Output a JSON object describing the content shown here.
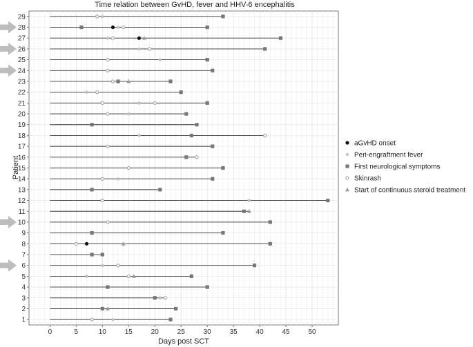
{
  "chart_data": {
    "type": "scatter",
    "title": "Time relation between GvHD, fever and HHV-6 encephalitis",
    "xlabel": "Days post SCT",
    "ylabel": "Patient",
    "xlim": [
      -4,
      55
    ],
    "xticks": [
      0,
      5,
      10,
      15,
      20,
      25,
      30,
      35,
      40,
      45,
      50
    ],
    "ylim": [
      0.5,
      29.5
    ],
    "grid": true,
    "legend_position": "right",
    "legend": [
      {
        "key": "aGvHD",
        "label": "aGvHD onset",
        "marker": "circle",
        "color": "#111111"
      },
      {
        "key": "fever",
        "label": "Peri-engraftment fever",
        "marker": "star",
        "color": "#bdbdbd"
      },
      {
        "key": "neuro",
        "label": "First neurological symptoms",
        "marker": "square",
        "color": "#777777"
      },
      {
        "key": "rash",
        "label": "Skinrash",
        "marker": "small-circle",
        "color": "#aaaaaa"
      },
      {
        "key": "steroid",
        "label": "Start of continuous steroid treatment",
        "marker": "triangle",
        "color": "#999999"
      }
    ],
    "highlighted_patients": [
      28,
      26,
      24,
      10,
      6
    ],
    "patients": [
      {
        "id": 1,
        "end": 23,
        "events": [
          {
            "t": 8,
            "type": "rash"
          },
          {
            "t": 12,
            "type": "fever"
          },
          {
            "t": 23,
            "type": "neuro"
          }
        ]
      },
      {
        "id": 2,
        "end": 24,
        "events": [
          {
            "t": 10,
            "type": "neuro"
          },
          {
            "t": 11,
            "type": "steroid"
          },
          {
            "t": 24,
            "type": "neuro"
          }
        ]
      },
      {
        "id": 3,
        "end": 22,
        "events": [
          {
            "t": 20,
            "type": "neuro"
          },
          {
            "t": 21,
            "type": "fever"
          },
          {
            "t": 22,
            "type": "rash"
          }
        ]
      },
      {
        "id": 4,
        "end": 30,
        "events": [
          {
            "t": 11,
            "type": "neuro"
          },
          {
            "t": 30,
            "type": "neuro"
          }
        ]
      },
      {
        "id": 5,
        "end": 27,
        "events": [
          {
            "t": 7,
            "type": "fever"
          },
          {
            "t": 15,
            "type": "rash"
          },
          {
            "t": 16,
            "type": "steroid"
          },
          {
            "t": 27,
            "type": "neuro"
          }
        ]
      },
      {
        "id": 6,
        "end": 39,
        "events": [
          {
            "t": 10,
            "type": "fever"
          },
          {
            "t": 13,
            "type": "rash"
          },
          {
            "t": 39,
            "type": "neuro"
          }
        ]
      },
      {
        "id": 7,
        "end": 10,
        "events": [
          {
            "t": 8,
            "type": "neuro"
          },
          {
            "t": 10,
            "type": "neuro"
          }
        ]
      },
      {
        "id": 8,
        "end": 42,
        "events": [
          {
            "t": 5,
            "type": "rash"
          },
          {
            "t": 7,
            "type": "aGvHD"
          },
          {
            "t": 14,
            "type": "steroid"
          },
          {
            "t": 42,
            "type": "neuro"
          }
        ]
      },
      {
        "id": 9,
        "end": 33,
        "events": [
          {
            "t": 8,
            "type": "neuro"
          },
          {
            "t": 33,
            "type": "neuro"
          }
        ]
      },
      {
        "id": 10,
        "end": 42,
        "events": [
          {
            "t": 11,
            "type": "rash"
          },
          {
            "t": 42,
            "type": "neuro"
          }
        ]
      },
      {
        "id": 11,
        "end": 38,
        "events": [
          {
            "t": 37,
            "type": "neuro"
          },
          {
            "t": 38,
            "type": "steroid"
          }
        ]
      },
      {
        "id": 12,
        "end": 53,
        "events": [
          {
            "t": 10,
            "type": "rash"
          },
          {
            "t": 38,
            "type": "fever"
          },
          {
            "t": 53,
            "type": "neuro"
          }
        ]
      },
      {
        "id": 13,
        "end": 21,
        "events": [
          {
            "t": 8,
            "type": "neuro"
          },
          {
            "t": 21,
            "type": "neuro"
          }
        ]
      },
      {
        "id": 14,
        "end": 31,
        "events": [
          {
            "t": 10,
            "type": "rash"
          },
          {
            "t": 13,
            "type": "fever"
          },
          {
            "t": 31,
            "type": "neuro"
          }
        ]
      },
      {
        "id": 15,
        "end": 33,
        "events": [
          {
            "t": 15,
            "type": "rash"
          },
          {
            "t": 33,
            "type": "neuro"
          }
        ]
      },
      {
        "id": 16,
        "end": 28,
        "events": [
          {
            "t": 26,
            "type": "neuro"
          },
          {
            "t": 28,
            "type": "rash"
          }
        ]
      },
      {
        "id": 17,
        "end": 31,
        "events": [
          {
            "t": 11,
            "type": "rash"
          },
          {
            "t": 31,
            "type": "neuro"
          }
        ]
      },
      {
        "id": 18,
        "end": 41,
        "events": [
          {
            "t": 17,
            "type": "fever"
          },
          {
            "t": 27,
            "type": "neuro"
          },
          {
            "t": 41,
            "type": "rash"
          }
        ]
      },
      {
        "id": 19,
        "end": 28,
        "events": [
          {
            "t": 8,
            "type": "neuro"
          },
          {
            "t": 28,
            "type": "neuro"
          }
        ]
      },
      {
        "id": 20,
        "end": 26,
        "events": [
          {
            "t": 11,
            "type": "rash"
          },
          {
            "t": 15,
            "type": "fever"
          },
          {
            "t": 26,
            "type": "neuro"
          }
        ]
      },
      {
        "id": 21,
        "end": 30,
        "events": [
          {
            "t": 10,
            "type": "rash"
          },
          {
            "t": 17,
            "type": "fever"
          },
          {
            "t": 20,
            "type": "rash"
          },
          {
            "t": 30,
            "type": "neuro"
          }
        ]
      },
      {
        "id": 22,
        "end": 25,
        "events": [
          {
            "t": 7,
            "type": "fever"
          },
          {
            "t": 9,
            "type": "rash"
          },
          {
            "t": 25,
            "type": "neuro"
          }
        ]
      },
      {
        "id": 23,
        "end": 23,
        "events": [
          {
            "t": 12,
            "type": "rash"
          },
          {
            "t": 13,
            "type": "neuro"
          },
          {
            "t": 15,
            "type": "steroid"
          },
          {
            "t": 23,
            "type": "neuro"
          }
        ]
      },
      {
        "id": 24,
        "end": 31,
        "events": [
          {
            "t": 11,
            "type": "rash"
          },
          {
            "t": 31,
            "type": "neuro"
          }
        ]
      },
      {
        "id": 25,
        "end": 30,
        "events": [
          {
            "t": 11,
            "type": "rash"
          },
          {
            "t": 21,
            "type": "fever"
          },
          {
            "t": 30,
            "type": "neuro"
          }
        ]
      },
      {
        "id": 26,
        "end": 41,
        "events": [
          {
            "t": 17,
            "type": "fever"
          },
          {
            "t": 19,
            "type": "rash"
          },
          {
            "t": 41,
            "type": "neuro"
          }
        ]
      },
      {
        "id": 27,
        "end": 44,
        "events": [
          {
            "t": 11,
            "type": "fever"
          },
          {
            "t": 12,
            "type": "rash"
          },
          {
            "t": 17,
            "type": "aGvHD"
          },
          {
            "t": 18,
            "type": "steroid"
          },
          {
            "t": 44,
            "type": "neuro"
          }
        ]
      },
      {
        "id": 28,
        "end": 30,
        "events": [
          {
            "t": 6,
            "type": "neuro"
          },
          {
            "t": 12,
            "type": "aGvHD"
          },
          {
            "t": 13,
            "type": "fever"
          },
          {
            "t": 14,
            "type": "rash"
          },
          {
            "t": 30,
            "type": "neuro"
          }
        ]
      },
      {
        "id": 29,
        "end": 33,
        "events": [
          {
            "t": 9,
            "type": "rash"
          },
          {
            "t": 10,
            "type": "fever"
          },
          {
            "t": 33,
            "type": "neuro"
          }
        ]
      }
    ]
  }
}
